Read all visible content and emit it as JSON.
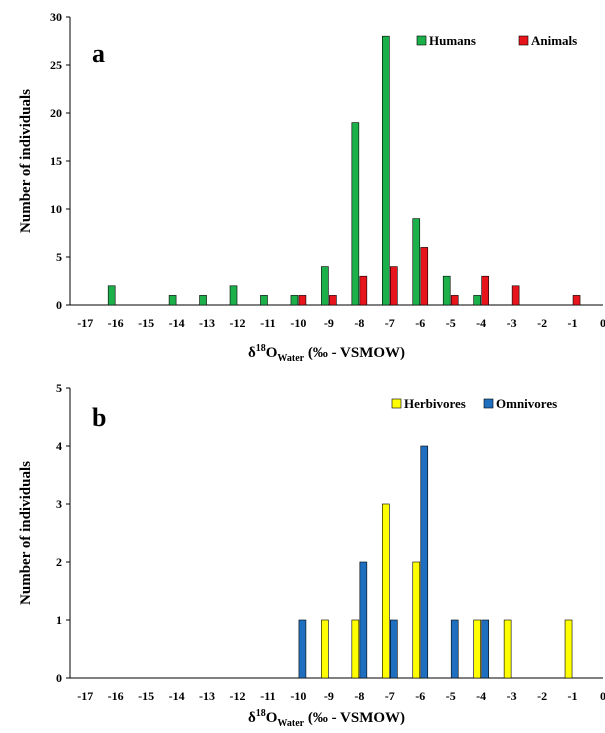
{
  "chart_data": [
    {
      "type": "bar",
      "panel_label": "a",
      "xlabel_main": "δ",
      "xlabel_sup": "18",
      "xlabel_o": "O",
      "xlabel_sub": "Water",
      "xlabel_tail": " (‰ - VSMOW)",
      "ylabel": "Number of individuals",
      "ylim": [
        0,
        30
      ],
      "yticks": [
        "0",
        "5",
        "10",
        "15",
        "20",
        "25",
        "30"
      ],
      "ytick_values": [
        0,
        5,
        10,
        15,
        20,
        25,
        30
      ],
      "categories": [
        "-17",
        "-16",
        "-15",
        "-14",
        "-13",
        "-12",
        "-11",
        "-10",
        "-9",
        "-8",
        "-7",
        "-6",
        "-5",
        "-4",
        "-3",
        "-2",
        "-1",
        "0"
      ],
      "category_values": [
        -17,
        -16,
        -15,
        -14,
        -13,
        -12,
        -11,
        -10,
        -9,
        -8,
        -7,
        -6,
        -5,
        -4,
        -3,
        -2,
        -1,
        0
      ],
      "grid": false,
      "legend_position": "top-right",
      "series": [
        {
          "name": "Humans",
          "color": "#1bb04a",
          "values": [
            0,
            2,
            0,
            1,
            1,
            2,
            1,
            1,
            4,
            19,
            28,
            9,
            3,
            1,
            0,
            0,
            0,
            0
          ]
        },
        {
          "name": "Animals",
          "color": "#e8141b",
          "values": [
            0,
            0,
            0,
            0,
            0,
            0,
            0,
            1,
            1,
            3,
            4,
            6,
            1,
            3,
            2,
            0,
            1,
            0
          ]
        }
      ]
    },
    {
      "type": "bar",
      "panel_label": "b",
      "xlabel_main": "δ",
      "xlabel_sup": "18",
      "xlabel_o": "O",
      "xlabel_sub": "Water",
      "xlabel_tail": " (‰ - VSMOW)",
      "ylabel": "Number of individuals",
      "ylim": [
        0,
        5
      ],
      "yticks": [
        "0",
        "1",
        "2",
        "3",
        "4",
        "5"
      ],
      "ytick_values": [
        0,
        1,
        2,
        3,
        4,
        5
      ],
      "categories": [
        "-17",
        "-16",
        "-15",
        "-14",
        "-13",
        "-12",
        "-11",
        "-10",
        "-9",
        "-8",
        "-7",
        "-6",
        "-5",
        "-4",
        "-3",
        "-2",
        "-1",
        "0"
      ],
      "category_values": [
        -17,
        -16,
        -15,
        -14,
        -13,
        -12,
        -11,
        -10,
        -9,
        -8,
        -7,
        -6,
        -5,
        -4,
        -3,
        -2,
        -1,
        0
      ],
      "grid": false,
      "legend_position": "top-right",
      "series": [
        {
          "name": "Herbivores",
          "color": "#ffff00",
          "values": [
            0,
            0,
            0,
            0,
            0,
            0,
            0,
            0,
            1,
            1,
            3,
            2,
            0,
            1,
            1,
            0,
            1,
            0
          ]
        },
        {
          "name": "Omnivores",
          "color": "#1f6fc0",
          "values": [
            0,
            0,
            0,
            0,
            0,
            0,
            0,
            1,
            0,
            2,
            1,
            4,
            1,
            1,
            0,
            0,
            0,
            0
          ]
        }
      ]
    }
  ]
}
